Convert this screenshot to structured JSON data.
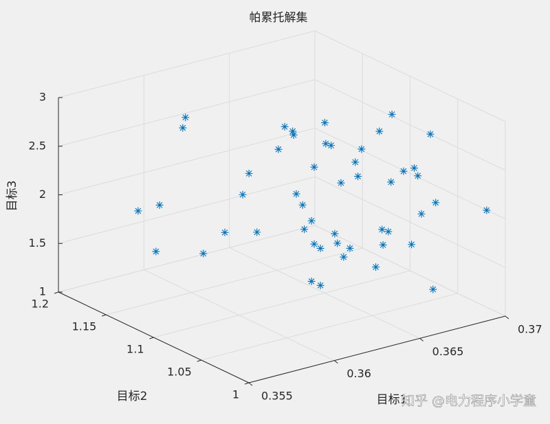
{
  "chart_data": {
    "type": "scatter3d",
    "title": "帕累托解集",
    "xlabel": "目标1",
    "ylabel": "目标2",
    "zlabel": "目标3",
    "color": "#0072bd",
    "grid": true,
    "xlim": [
      0.355,
      0.37
    ],
    "ylim": [
      1,
      1.2
    ],
    "zlim": [
      1,
      3
    ],
    "xticks": [
      0.355,
      0.36,
      0.365,
      0.37
    ],
    "yticks": [
      1,
      1.05,
      1.1,
      1.15,
      1.2
    ],
    "zticks": [
      1,
      1.5,
      2,
      2.5,
      3
    ],
    "x": [
      0.3581,
      0.3588,
      0.3596,
      0.3597,
      0.3587,
      0.3603,
      0.361,
      0.3621,
      0.3616,
      0.3618,
      0.3628,
      0.363,
      0.3633,
      0.3633,
      0.3644,
      0.3644,
      0.3646,
      0.364,
      0.3634,
      0.3636,
      0.3639,
      0.3637,
      0.364,
      0.3642,
      0.3647,
      0.3648,
      0.3652,
      0.365,
      0.3639,
      0.3642,
      0.3649,
      0.3654,
      0.3655,
      0.3656,
      0.3662,
      0.3666,
      0.3666,
      0.367,
      0.3674,
      0.3675,
      0.3679,
      0.3663,
      0.3665,
      0.3663,
      0.3661,
      0.3673,
      0.3676,
      0.3681,
      0.368,
      0.3698
    ],
    "y": [
      1.172,
      1.162,
      1.152,
      1.151,
      1.164,
      1.143,
      1.133,
      1.119,
      1.125,
      1.122,
      1.109,
      1.106,
      1.103,
      1.102,
      1.089,
      1.088,
      1.086,
      1.093,
      1.101,
      1.098,
      1.094,
      1.098,
      1.093,
      1.09,
      1.084,
      1.083,
      1.077,
      1.08,
      1.094,
      1.09,
      1.081,
      1.075,
      1.074,
      1.072,
      1.064,
      1.058,
      1.059,
      1.053,
      1.049,
      1.047,
      1.041,
      1.063,
      1.06,
      1.062,
      1.066,
      1.05,
      1.045,
      1.039,
      1.04,
      1.016
    ],
    "z": [
      1.823,
      1.898,
      2.702,
      2.81,
      1.416,
      1.42,
      1.651,
      1.669,
      2.05,
      2.273,
      2.536,
      2.773,
      2.727,
      2.693,
      2.83,
      2.619,
      2.601,
      2.373,
      2.087,
      1.978,
      1.82,
      1.724,
      1.581,
      1.542,
      1.698,
      1.6,
      1.558,
      1.463,
      1.198,
      1.161,
      2.225,
      2.444,
      2.298,
      2.583,
      2.776,
      2.96,
      2.259,
      2.38,
      2.413,
      2.338,
      2.776,
      1.766,
      1.749,
      1.612,
      1.375,
      1.627,
      1.951,
      2.072,
      1.18,
      2.023
    ]
  },
  "watermark": "知乎 @电力程序小学童"
}
